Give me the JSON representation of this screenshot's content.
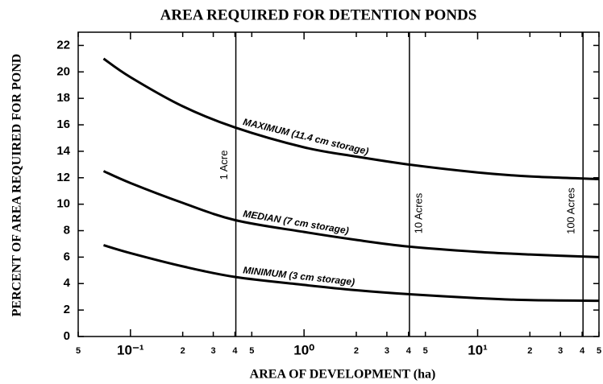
{
  "chart_data": {
    "type": "line",
    "title": "AREA REQUIRED FOR DETENTION PONDS",
    "x_label": "AREA OF DEVELOPMENT (ha)",
    "y_label": "PERCENT OF AREA REQUIRED FOR POND",
    "x_scale": "log",
    "xlim": [
      0.05,
      50
    ],
    "xticks": [
      {
        "value": 0.05,
        "label": "5"
      },
      {
        "value": 0.1,
        "label": "10⁻¹"
      },
      {
        "value": 0.2,
        "label": "2"
      },
      {
        "value": 0.3,
        "label": "3"
      },
      {
        "value": 0.4,
        "label": "4"
      },
      {
        "value": 0.5,
        "label": "5"
      },
      {
        "value": 1,
        "label": "10⁰"
      },
      2,
      3,
      4,
      5,
      {
        "value": 10,
        "label": "10¹"
      },
      {
        "value": 20,
        "label": "2"
      },
      {
        "value": 30,
        "label": "3"
      },
      {
        "value": 40,
        "label": "4"
      },
      {
        "value": 50,
        "label": "5"
      }
    ],
    "ylim": [
      0,
      23
    ],
    "yticks": [
      0,
      2,
      4,
      6,
      8,
      10,
      12,
      14,
      16,
      18,
      20,
      22
    ],
    "x": [
      0.07,
      0.1,
      0.2,
      0.4,
      1,
      2,
      4,
      10,
      20,
      50
    ],
    "series": [
      {
        "name": "MAXIMUM (11.4 cm storage)",
        "color": "#000000",
        "values": [
          21,
          19.6,
          17.4,
          15.8,
          14.3,
          13.6,
          13.0,
          12.4,
          12.1,
          11.9
        ]
      },
      {
        "name": "MEDIAN (7 cm storage)",
        "color": "#000000",
        "values": [
          12.5,
          11.6,
          10.1,
          8.8,
          7.9,
          7.3,
          6.8,
          6.4,
          6.2,
          6.0
        ]
      },
      {
        "name": "MINIMUM (3 cm storage)",
        "color": "#000000",
        "values": [
          6.9,
          6.3,
          5.3,
          4.5,
          3.9,
          3.5,
          3.2,
          2.9,
          2.75,
          2.7
        ]
      }
    ],
    "annotations": [
      {
        "text": "1 Acre",
        "x": 0.4047
      },
      {
        "text": "10 Acres",
        "x": 4.047
      },
      {
        "text": "100 Acres",
        "x": 40.47
      }
    ]
  }
}
